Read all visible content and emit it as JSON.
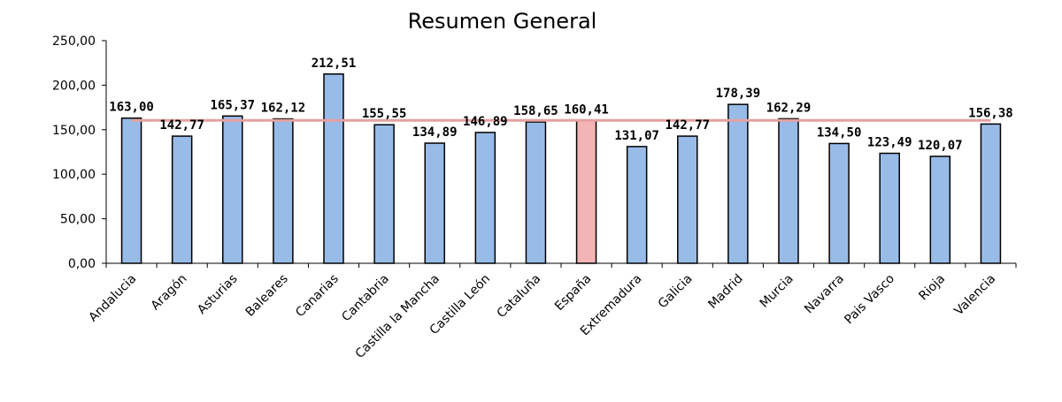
{
  "chart_data": {
    "type": "bar",
    "title": "Resumen General",
    "xlabel": "",
    "ylabel": "",
    "ylim": [
      0,
      250
    ],
    "yticks": [
      0,
      50,
      100,
      150,
      200,
      250
    ],
    "ytick_labels": [
      "0,00",
      "50,00",
      "100,00",
      "150,00",
      "200,00",
      "250,00"
    ],
    "grid": false,
    "legend": "none",
    "categories": [
      "Andalucia",
      "Aragón",
      "Asturias",
      "Baleares",
      "Canarias",
      "Cantabria",
      "Castilla la Mancha",
      "Castilla León",
      "Cataluña",
      "España",
      "Extremadura",
      "Galicia",
      "Madrid",
      "Murcia",
      "Navarra",
      "Pais Vasco",
      "Rioja",
      "Valencia"
    ],
    "values": [
      163.0,
      142.77,
      165.37,
      162.12,
      212.51,
      155.55,
      134.89,
      146.89,
      158.65,
      160.41,
      131.07,
      142.77,
      178.39,
      162.29,
      134.5,
      123.49,
      120.07,
      156.38
    ],
    "value_labels": [
      "163,00",
      "142,77",
      "165,37",
      "162,12",
      "212,51",
      "155,55",
      "134,89",
      "146,89",
      "158,65",
      "160,41",
      "131,07",
      "142,77",
      "178,39",
      "162,29",
      "134,50",
      "123,49",
      "120,07",
      "156,38"
    ],
    "highlight_category": "España",
    "reference_line": {
      "value": 160.41
    },
    "colors": {
      "bar": "#99bbe8",
      "highlight_bar": "#f2b4b4",
      "reference_line": "#e6a0a0",
      "bar_stroke": "#000000"
    }
  }
}
